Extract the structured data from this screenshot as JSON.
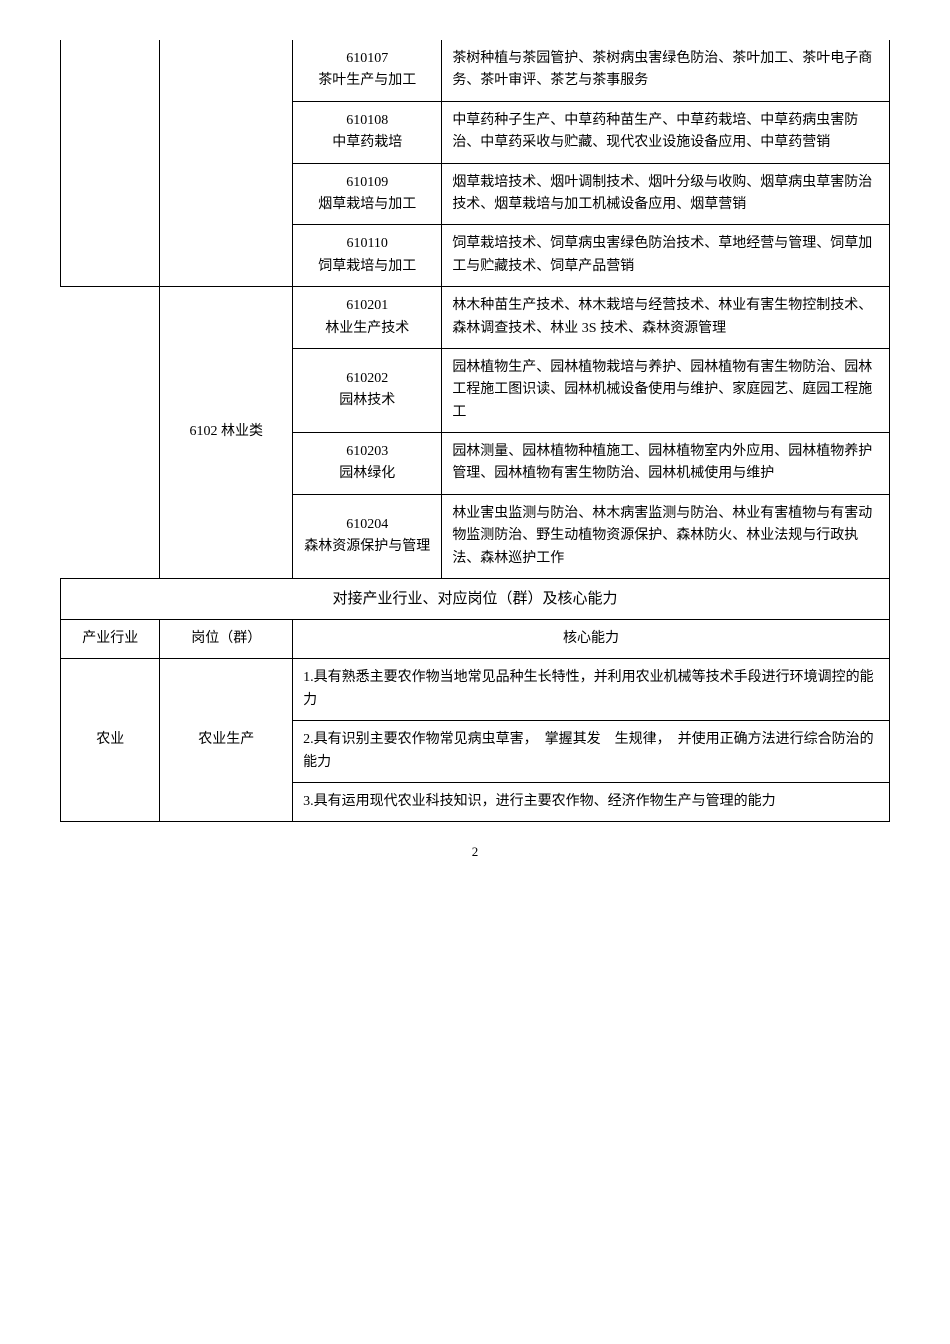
{
  "rows_top": [
    {
      "code": "610107",
      "name": "茶叶生产与加工",
      "desc": "茶树种植与茶园管护、茶树病虫害绿色防治、茶叶加工、茶叶电子商务、茶叶审评、茶艺与茶事服务"
    },
    {
      "code": "610108",
      "name": "中草药栽培",
      "desc": "中草药种子生产、中草药种苗生产、中草药栽培、中草药病虫害防治、中草药采收与贮藏、现代农业设施设备应用、中草药营销"
    },
    {
      "code": "610109",
      "name": "烟草栽培与加工",
      "desc": "烟草栽培技术、烟叶调制技术、烟叶分级与收购、烟草病虫草害防治技术、烟草栽培与加工机械设备应用、烟草营销"
    },
    {
      "code": "610110",
      "name": "饲草栽培与加工",
      "desc": "饲草栽培技术、饲草病虫害绿色防治技术、草地经营与管理、饲草加工与贮藏技术、饲草产品营销"
    }
  ],
  "forestry_category": "6102 林业类",
  "rows_forestry": [
    {
      "code": "610201",
      "name": "林业生产技术",
      "desc": "林木种苗生产技术、林木栽培与经营技术、林业有害生物控制技术、森林调查技术、林业 3S 技术、森林资源管理"
    },
    {
      "code": "610202",
      "name": "园林技术",
      "desc": "园林植物生产、园林植物栽培与养护、园林植物有害生物防治、园林工程施工图识读、园林机械设备使用与维护、家庭园艺、庭园工程施工"
    },
    {
      "code": "610203",
      "name": "园林绿化",
      "desc": "园林测量、园林植物种植施工、园林植物室内外应用、园林植物养护管理、园林植物有害生物防治、园林机械使用与维护"
    },
    {
      "code": "610204",
      "name": "森林资源保护与管理",
      "desc": "林业害虫监测与防治、林木病害监测与防治、林业有害植物与有害动物监测防治、野生动植物资源保护、森林防火、林业法规与行政执法、森林巡护工作"
    }
  ],
  "section_title": "对接产业行业、对应岗位（群）及核心能力",
  "header": {
    "industry": "产业行业",
    "position": "岗位（群）",
    "ability": "核心能力"
  },
  "agri": {
    "industry": "农业",
    "position": "农业生产",
    "abilities": [
      "1.具有熟悉主要农作物当地常见品种生长特性，并利用农业机械等技术手段进行环境调控的能力",
      "2.具有识别主要农作物常见病虫草害，　掌握其发　生规律，　并使用正确方法进行综合防治的能力",
      "3.具有运用现代农业科技知识，进行主要农作物、经济作物生产与管理的能力"
    ]
  },
  "page_number": "2"
}
